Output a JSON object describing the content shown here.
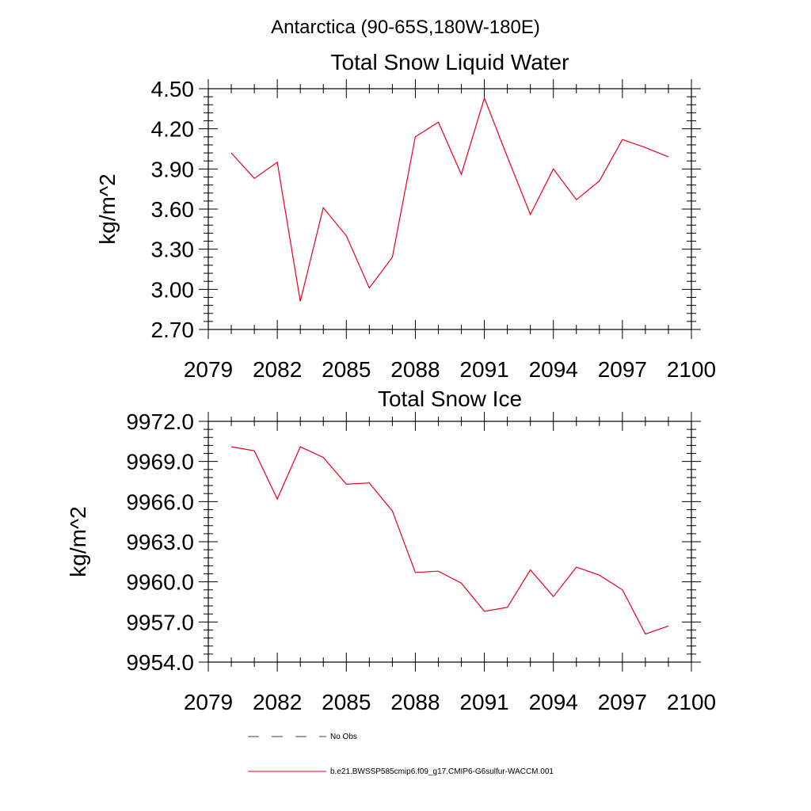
{
  "figure": {
    "main_title": "Antarctica (90-65S,180W-180E)",
    "line_color": "#e8001c",
    "legend": {
      "obs_label": "No Obs",
      "obs_color": "#3a3a66",
      "model_label": "b.e21.BWSSP585cmip6.f09_g17.CMIP6-G6sulfur-WACCM.001"
    }
  },
  "chart_data": [
    {
      "type": "line",
      "title": "Total Snow Liquid Water",
      "xlabel": "",
      "ylabel": "kg/m^2",
      "xlim": [
        2079,
        2100
      ],
      "ylim": [
        2.7,
        4.5
      ],
      "xticks": [
        "2079",
        "2082",
        "2085",
        "2088",
        "2091",
        "2094",
        "2097",
        "2100"
      ],
      "yticks": [
        "2.70",
        "3.00",
        "3.30",
        "3.60",
        "3.90",
        "4.20",
        "4.50"
      ],
      "grid": false,
      "x": [
        2080,
        2081,
        2082,
        2083,
        2084,
        2085,
        2086,
        2087,
        2088,
        2089,
        2090,
        2091,
        2092,
        2093,
        2094,
        2095,
        2096,
        2097,
        2098,
        2099
      ],
      "series": [
        {
          "values": [
            4.02,
            3.83,
            3.95,
            2.91,
            3.61,
            3.4,
            3.01,
            3.24,
            4.14,
            4.25,
            3.86,
            4.43,
            3.99,
            3.56,
            3.9,
            3.67,
            3.81,
            4.12,
            4.06,
            3.99
          ]
        }
      ]
    },
    {
      "type": "line",
      "title": "Total Snow Ice",
      "xlabel": "",
      "ylabel": "kg/m^2",
      "xlim": [
        2079,
        2100
      ],
      "ylim": [
        9954.0,
        9972.0
      ],
      "xticks": [
        "2079",
        "2082",
        "2085",
        "2088",
        "2091",
        "2094",
        "2097",
        "2100"
      ],
      "yticks": [
        "9954.0",
        "9957.0",
        "9960.0",
        "9963.0",
        "9966.0",
        "9969.0",
        "9972.0"
      ],
      "grid": false,
      "x": [
        2080,
        2081,
        2082,
        2083,
        2084,
        2085,
        2086,
        2087,
        2088,
        2089,
        2090,
        2091,
        2092,
        2093,
        2094,
        2095,
        2096,
        2097,
        2098,
        2099
      ],
      "series": [
        {
          "values": [
            9970.1,
            9969.8,
            9966.2,
            9970.1,
            9969.3,
            9967.3,
            9967.4,
            9965.3,
            9960.7,
            9960.8,
            9959.9,
            9957.8,
            9958.1,
            9960.9,
            9958.9,
            9961.1,
            9960.5,
            9959.4,
            9956.1,
            9956.7
          ]
        }
      ]
    }
  ]
}
